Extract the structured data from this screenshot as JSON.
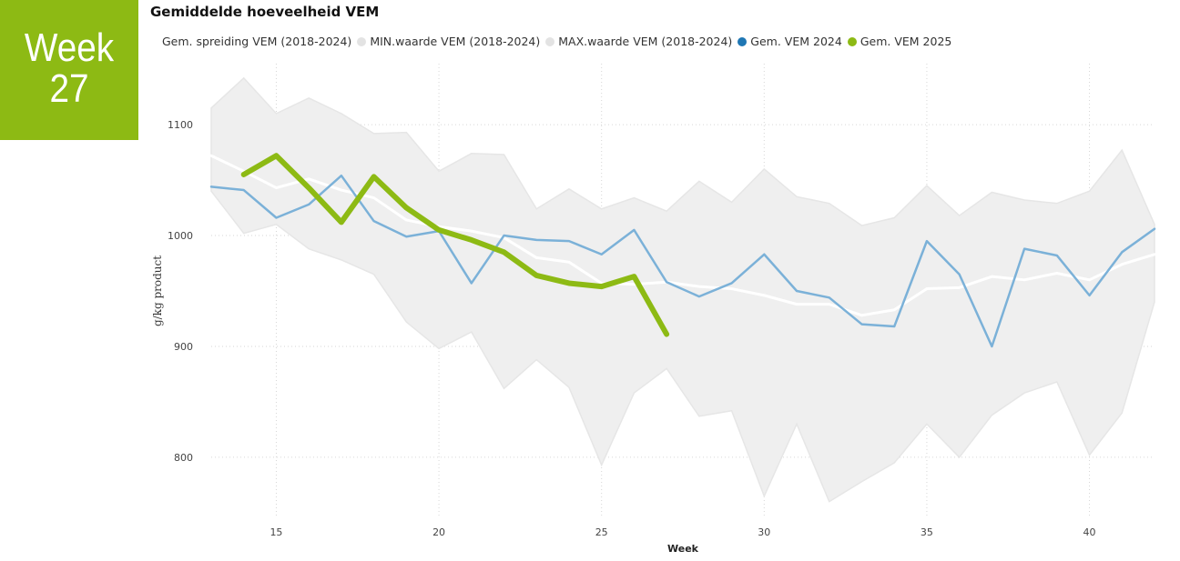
{
  "badge": {
    "word": "Week",
    "number": "27",
    "color": "#8dba14"
  },
  "chart_data": {
    "type": "line",
    "title": "Gemiddelde hoeveelheid VEM",
    "xlabel": "Week",
    "ylabel": "g/kg product",
    "xlim": [
      13,
      42
    ],
    "ylim": [
      745,
      1155
    ],
    "xticks": [
      15,
      20,
      25,
      30,
      35,
      40
    ],
    "yticks": [
      800,
      900,
      1000,
      1100
    ],
    "grid": true,
    "legend_position": "top",
    "weeks": [
      13,
      14,
      15,
      16,
      17,
      18,
      19,
      20,
      21,
      22,
      23,
      24,
      25,
      26,
      27,
      28,
      29,
      30,
      31,
      32,
      33,
      34,
      35,
      36,
      37,
      38,
      39,
      40,
      41,
      42
    ],
    "series": [
      {
        "name": "Gem. spreiding VEM (2018-2024)",
        "kind": "band",
        "color": "#efefef",
        "min": [
          1040,
          1002,
          1010,
          988,
          978,
          965,
          922,
          898,
          913,
          862,
          888,
          863,
          793,
          858,
          880,
          837,
          842,
          765,
          830,
          760,
          778,
          795,
          830,
          800,
          838,
          858,
          868,
          802,
          840,
          940
        ],
        "max": [
          1115,
          1142,
          1110,
          1124,
          1110,
          1092,
          1093,
          1058,
          1074,
          1073,
          1024,
          1042,
          1024,
          1034,
          1022,
          1049,
          1030,
          1060,
          1035,
          1029,
          1009,
          1016,
          1045,
          1018,
          1039,
          1032,
          1029,
          1040,
          1077,
          1010
        ]
      },
      {
        "name": "MIN.waarde VEM (2018-2024)",
        "kind": "legend-only",
        "color": "#e3e3e3"
      },
      {
        "name": "MAX.waarde VEM (2018-2024)",
        "kind": "legend-only",
        "color": "#e3e3e3"
      },
      {
        "name": "Gem. VEM 2024",
        "kind": "line",
        "color": "#1f77b4",
        "line_color": "#7bb1d8",
        "x": [
          13,
          14,
          15,
          16,
          17,
          18,
          19,
          20,
          21,
          22,
          23,
          24,
          25,
          26,
          27,
          28,
          29,
          30,
          31,
          32,
          33,
          34,
          35,
          36,
          37,
          38,
          39,
          40,
          41,
          42
        ],
        "values": [
          1044,
          1041,
          1016,
          1028,
          1054,
          1013,
          999,
          1004,
          957,
          1000,
          996,
          995,
          983,
          1005,
          958,
          945,
          957,
          983,
          950,
          944,
          920,
          918,
          995,
          965,
          900,
          988,
          982,
          946,
          985,
          1006
        ]
      },
      {
        "name": "Gem. VEM 2025",
        "kind": "line",
        "color": "#8dba14",
        "x": [
          14,
          15,
          16,
          17,
          18,
          19,
          20,
          21,
          22,
          23,
          24,
          25,
          26,
          27
        ],
        "values": [
          1055,
          1072,
          1043,
          1012,
          1053,
          1025,
          1005,
          996,
          985,
          964,
          957,
          954,
          963,
          911
        ]
      },
      {
        "name": "Gemiddelde 2018-2024",
        "kind": "mean-line",
        "color": "#ffffff",
        "x": [
          13,
          14,
          15,
          16,
          17,
          18,
          19,
          20,
          21,
          22,
          23,
          24,
          25,
          26,
          27,
          28,
          29,
          30,
          31,
          32,
          33,
          34,
          35,
          36,
          37,
          38,
          39,
          40,
          41,
          42
        ],
        "values": [
          1072,
          1058,
          1043,
          1051,
          1041,
          1034,
          1014,
          1008,
          1004,
          998,
          980,
          976,
          957,
          956,
          958,
          954,
          952,
          946,
          938,
          938,
          928,
          933,
          952,
          953,
          963,
          960,
          966,
          960,
          974,
          983
        ]
      }
    ]
  }
}
